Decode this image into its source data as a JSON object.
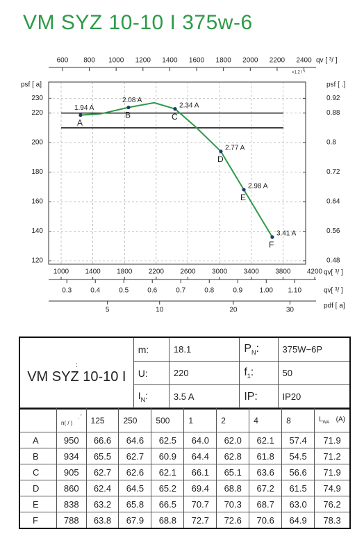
{
  "title": "VM SYZ 10-10 I 375w-6",
  "chart_data": {
    "type": "line",
    "x": [
      1245,
      1500,
      1850,
      2175,
      2438,
      2700,
      3016,
      3306,
      3665
    ],
    "series": [
      {
        "color": "#2e9a48",
        "values": [
          218.6,
          219.5,
          223.8,
          227,
          222.8,
          210.5,
          194,
          168.1,
          136
        ]
      }
    ],
    "xlim": [
      1000,
      4200
    ],
    "xticks": [
      1000,
      1400,
      1800,
      2200,
      2600,
      3000,
      3400,
      3800,
      4200
    ],
    "xlabel": "qv[ ³/ ]",
    "ylim": [
      120,
      241
    ],
    "yticks": [
      120,
      140,
      160,
      180,
      200,
      220,
      230
    ],
    "ylabel": "psf [ a]",
    "y2lim": [
      0.48,
      0.964
    ],
    "y2ticks": [
      0.48,
      0.56,
      0.64,
      0.72,
      0.8,
      0.88,
      0.92
    ],
    "y2label": "psf [  .]",
    "x2lim": [
      590,
      2480
    ],
    "x2ticks": [
      600,
      800,
      1000,
      1200,
      1400,
      1600,
      1800,
      2000,
      2200,
      2400
    ],
    "x2label": "qv [  ³/ ]",
    "x2note": "=1.2  /  ³",
    "x3lim": [
      0.28,
      1.17
    ],
    "x3ticks": [
      0.3,
      0.4,
      0.5,
      0.6,
      0.7,
      0.8,
      0.9,
      {
        "value": 1.0,
        "label": "1.00"
      },
      {
        "value": 1.1,
        "label": "1.10"
      }
    ],
    "x3label": "qv[  ³/ ]",
    "x4lim": [
      2,
      35
    ],
    "x4scale": "sqrt",
    "x4ticks": [
      5,
      10,
      20,
      30
    ],
    "x4label": "pdf [ a]",
    "hlines": [
      220,
      210
    ],
    "grid": true,
    "points": {
      "x": [
        1245,
        1850,
        2438,
        3016,
        3306,
        3665
      ],
      "y": [
        218.6,
        223.8,
        222.8,
        194,
        168.1,
        136
      ],
      "labels": [
        "A",
        "B",
        "C",
        "D",
        "E",
        "F"
      ],
      "currents": [
        "1.94 A",
        "2.08 A",
        "2.34 A",
        "2.77 A",
        "2.98 A",
        "3.41 A"
      ],
      "color": "#1f3a6e"
    }
  },
  "spec": {
    "model_note": ":",
    "model": "VM SYZ 10-10 I",
    "params": [
      [
        {
          "label": "m:",
          "value": "18.1"
        },
        {
          "label": "P",
          "sub": "N",
          "colon": ":",
          "value": "375W−6P"
        }
      ],
      [
        {
          "label": "U:",
          "value": "220"
        },
        {
          "label": "f",
          "sub": "1",
          "colon": ":",
          "value": "50"
        }
      ],
      [
        {
          "label": "I",
          "sub": "N",
          "colon": ":",
          "value": "3.5  A"
        },
        {
          "label": "IP:",
          "value": "IP20"
        }
      ]
    ]
  },
  "noise": {
    "header_note": ".   '",
    "header": [
      "n( / )",
      "125",
      "250",
      "500",
      "1",
      "2",
      "4",
      "8"
    ],
    "lwa": {
      "main": "L",
      "sub": "WA",
      "unit": "(A)"
    },
    "rows": [
      [
        "A",
        "950",
        "66.6",
        "64.6",
        "62.5",
        "64.0",
        "62.0",
        "62.1",
        "57.4",
        "71.9"
      ],
      [
        "B",
        "934",
        "65.5",
        "62.7",
        "60.9",
        "64.4",
        "62.8",
        "61.8",
        "54.5",
        "71.2"
      ],
      [
        "C",
        "905",
        "62.7",
        "62.6",
        "62.1",
        "66.1",
        "65.1",
        "63.6",
        "56.6",
        "71.9"
      ],
      [
        "D",
        "860",
        "62.4",
        "64.5",
        "65.2",
        "69.4",
        "68.8",
        "67.2",
        "61.5",
        "74.9"
      ],
      [
        "E",
        "838",
        "63.2",
        "65.8",
        "66.5",
        "70.7",
        "70.3",
        "68.7",
        "63.0",
        "76.2"
      ],
      [
        "F",
        "788",
        "63.8",
        "67.9",
        "68.8",
        "72.7",
        "72.6",
        "70.6",
        "64.9",
        "78.3"
      ]
    ]
  }
}
